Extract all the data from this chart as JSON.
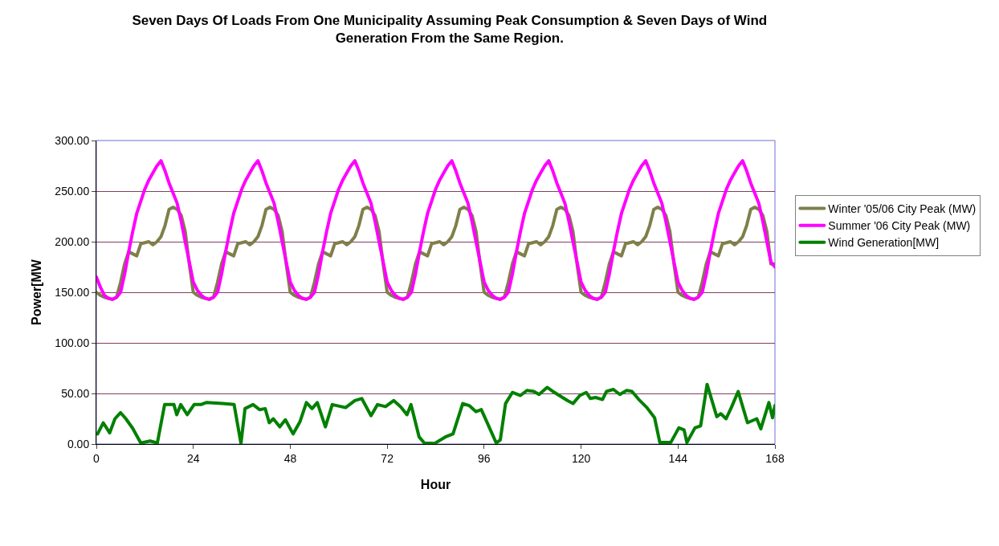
{
  "chart_data": {
    "type": "line",
    "title": "Seven Days Of Loads From One Municipality Assuming Peak Consumption & Seven Days of Wind Generation From the Same Region.",
    "xlabel": "Hour",
    "ylabel": "Power[MW",
    "x": [
      0,
      1,
      2,
      3,
      4,
      5,
      6,
      7,
      8,
      9,
      10,
      11,
      12,
      13,
      14,
      15,
      16,
      17,
      18,
      19,
      20,
      21,
      22,
      23,
      24,
      25,
      26,
      27,
      28,
      29,
      30,
      31,
      32,
      33,
      34,
      35,
      36,
      37,
      38,
      39,
      40,
      41,
      42,
      43,
      44,
      45,
      46,
      47,
      48,
      49,
      50,
      51,
      52,
      53,
      54,
      55,
      56,
      57,
      58,
      59,
      60,
      61,
      62,
      63,
      64,
      65,
      66,
      67,
      68,
      69,
      70,
      71,
      72,
      73,
      74,
      75,
      76,
      77,
      78,
      79,
      80,
      81,
      82,
      83,
      84,
      85,
      86,
      87,
      88,
      89,
      90,
      91,
      92,
      93,
      94,
      95,
      96,
      97,
      98,
      99,
      100,
      101,
      102,
      103,
      104,
      105,
      106,
      107,
      108,
      109,
      110,
      111,
      112,
      113,
      114,
      115,
      116,
      117,
      118,
      119,
      120,
      121,
      122,
      123,
      124,
      125,
      126,
      127,
      128,
      129,
      130,
      131,
      132,
      133,
      134,
      135,
      136,
      137,
      138,
      139,
      140,
      141,
      142,
      143,
      144,
      145,
      146,
      147,
      148,
      149,
      150,
      151,
      152,
      153,
      154,
      155,
      156,
      157,
      158,
      159,
      160,
      161,
      162,
      163,
      164,
      165,
      166,
      167,
      168
    ],
    "series": [
      {
        "name": "Winter '05/06 City Peak (MW)",
        "color": "#7f7f4a",
        "values": [
          150,
          147,
          145,
          144,
          143,
          145,
          160,
          178,
          190,
          188,
          186,
          198,
          199,
          200,
          197,
          200,
          205,
          216,
          232,
          234,
          232,
          226,
          210,
          178,
          150,
          147,
          145,
          144,
          143,
          145,
          160,
          178,
          190,
          188,
          186,
          198,
          199,
          200,
          197,
          200,
          205,
          216,
          232,
          234,
          232,
          226,
          210,
          178,
          150,
          147,
          145,
          144,
          143,
          145,
          160,
          178,
          190,
          188,
          186,
          198,
          199,
          200,
          197,
          200,
          205,
          216,
          232,
          234,
          232,
          226,
          210,
          178,
          150,
          147,
          145,
          144,
          143,
          145,
          160,
          178,
          190,
          188,
          186,
          198,
          199,
          200,
          197,
          200,
          205,
          216,
          232,
          234,
          232,
          226,
          210,
          178,
          150,
          147,
          145,
          144,
          143,
          145,
          160,
          178,
          190,
          188,
          186,
          198,
          199,
          200,
          197,
          200,
          205,
          216,
          232,
          234,
          232,
          226,
          210,
          178,
          150,
          147,
          145,
          144,
          143,
          145,
          160,
          178,
          190,
          188,
          186,
          198,
          199,
          200,
          197,
          200,
          205,
          216,
          232,
          234,
          232,
          226,
          210,
          178,
          150,
          147,
          145,
          144,
          143,
          145,
          160,
          178,
          190,
          188,
          186,
          198,
          199,
          200,
          197,
          200,
          205,
          216,
          232,
          234,
          232,
          226,
          210,
          178,
          178
        ]
      },
      {
        "name": "Summer '06 City Peak (MW)",
        "color": "#ff00ff",
        "values": [
          165,
          155,
          147,
          144,
          143,
          145,
          150,
          168,
          190,
          210,
          228,
          240,
          252,
          261,
          268,
          275,
          280,
          270,
          258,
          248,
          238,
          220,
          200,
          180,
          160,
          152,
          147,
          144,
          143,
          145,
          150,
          168,
          190,
          210,
          228,
          240,
          252,
          261,
          268,
          275,
          280,
          270,
          258,
          248,
          238,
          220,
          200,
          180,
          160,
          152,
          147,
          144,
          143,
          145,
          150,
          168,
          190,
          210,
          228,
          240,
          252,
          261,
          268,
          275,
          280,
          270,
          258,
          248,
          238,
          220,
          200,
          180,
          160,
          152,
          147,
          144,
          143,
          145,
          150,
          168,
          190,
          210,
          228,
          240,
          252,
          261,
          268,
          275,
          280,
          270,
          258,
          248,
          238,
          220,
          200,
          180,
          160,
          152,
          147,
          144,
          143,
          145,
          150,
          168,
          190,
          210,
          228,
          240,
          252,
          261,
          268,
          275,
          280,
          270,
          258,
          248,
          238,
          220,
          200,
          180,
          160,
          152,
          147,
          144,
          143,
          145,
          150,
          168,
          190,
          210,
          228,
          240,
          252,
          261,
          268,
          275,
          280,
          270,
          258,
          248,
          238,
          220,
          200,
          180,
          160,
          152,
          147,
          144,
          143,
          145,
          150,
          168,
          190,
          210,
          228,
          240,
          252,
          261,
          268,
          275,
          280,
          270,
          258,
          248,
          238,
          220,
          200,
          180,
          175
        ]
      },
      {
        "name": "Wind Generation[MW]",
        "color": "#008000",
        "x": [
          0.3,
          1.7,
          3.3,
          4.6,
          6,
          7.3,
          9,
          11,
          13.3,
          15.1,
          16.9,
          19.2,
          19.9,
          20.9,
          22.5,
          24.2,
          25.9,
          27.2,
          31.2,
          34.1,
          35.8,
          36.8,
          38.8,
          40.4,
          41.8,
          42.8,
          43.8,
          45.4,
          46.8,
          48.7,
          50.4,
          52,
          53.4,
          54.7,
          56.7,
          58.4,
          61.7,
          64,
          65.7,
          68,
          69.6,
          71.6,
          73.6,
          75.3,
          76.9,
          77.9,
          79.9,
          81.2,
          83.7,
          86.4,
          88.3,
          90.7,
          92.3,
          94,
          95.3,
          97,
          99,
          100,
          101.3,
          103,
          105,
          106.6,
          108.3,
          109.6,
          111.6,
          113,
          115,
          116.6,
          118,
          119.7,
          121.3,
          122.3,
          123.6,
          125.3,
          126.3,
          128,
          129.6,
          131.3,
          132.6,
          134.3,
          136.3,
          138.2,
          139.5,
          142.2,
          144.2,
          145.5,
          146.2,
          148.2,
          149.6,
          151.2,
          153.6,
          154.6,
          155.9,
          157.2,
          158.9,
          161.2,
          163.5,
          164.5,
          166.5,
          167.4,
          168
        ],
        "values": [
          10,
          21,
          11,
          25,
          31,
          25,
          15.5,
          1,
          3,
          1,
          39,
          39,
          29,
          39,
          29,
          39,
          39,
          41,
          40,
          39,
          0.5,
          35,
          39,
          34,
          35,
          21,
          25,
          17,
          24,
          10,
          22,
          41,
          35,
          41,
          17,
          39,
          36,
          43,
          45,
          28,
          39,
          37,
          43,
          37,
          29,
          39,
          7,
          1,
          0.5,
          7,
          10,
          40,
          38,
          32,
          34,
          19,
          1,
          4,
          40,
          51,
          48,
          53,
          52,
          49,
          56,
          52,
          47,
          43,
          40,
          48,
          51,
          45,
          46,
          44,
          52,
          54,
          49,
          53,
          52,
          44,
          36,
          26,
          1.5,
          1.5,
          16,
          14,
          1.5,
          16,
          18,
          59,
          27,
          30,
          25,
          36,
          52,
          21,
          25,
          15,
          41,
          26,
          38
        ]
      }
    ],
    "xlim": [
      0,
      168
    ],
    "xticks": [
      0,
      24,
      48,
      72,
      96,
      120,
      144,
      168
    ],
    "ylim": [
      0,
      300
    ],
    "yticks": [
      {
        "value": 0,
        "label": "0.00"
      },
      {
        "value": 50,
        "label": "50.00"
      },
      {
        "value": 100,
        "label": "100.00"
      },
      {
        "value": 150,
        "label": "150.00"
      },
      {
        "value": 200,
        "label": "200.00"
      },
      {
        "value": 250,
        "label": "250.00"
      },
      {
        "value": 300,
        "label": "300.00"
      }
    ],
    "grid": "y",
    "legend": "right"
  }
}
